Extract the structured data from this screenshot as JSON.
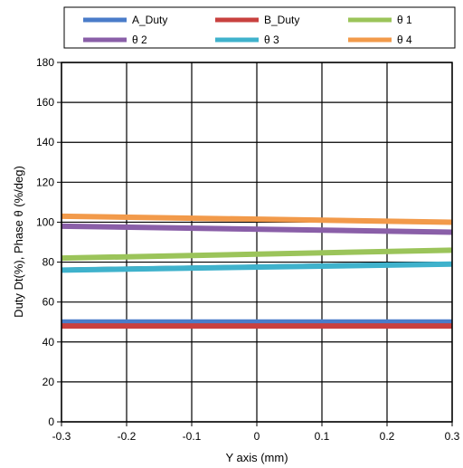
{
  "chart_data": {
    "type": "line",
    "xlabel": "Y axis (mm)",
    "ylabel": "Duty Dt(%), Phase θ (%/deg)",
    "xlim": [
      -0.3,
      0.3
    ],
    "ylim": [
      0,
      180
    ],
    "x_ticks": [
      "-0.3",
      "-0.2",
      "-0.1",
      "0",
      "0.1",
      "0.2",
      "0.3"
    ],
    "y_ticks": [
      "0",
      "20",
      "40",
      "60",
      "80",
      "100",
      "120",
      "140",
      "160",
      "180"
    ],
    "grid": true,
    "legend_position": "top",
    "x": [
      -0.3,
      0.3
    ],
    "series": [
      {
        "name": "A_Duty",
        "color": "#4a7cc9",
        "values": [
          50,
          50
        ]
      },
      {
        "name": "B_Duty",
        "color": "#c8413f",
        "values": [
          48,
          48
        ]
      },
      {
        "name": "θ 1",
        "color": "#9bc45a",
        "values": [
          82,
          86
        ]
      },
      {
        "name": "θ 2",
        "color": "#8a5fa8",
        "values": [
          98,
          95
        ]
      },
      {
        "name": "θ 3",
        "color": "#3fb2cc",
        "values": [
          76,
          79
        ]
      },
      {
        "name": "θ 4",
        "color": "#f29a4a",
        "values": [
          103,
          100
        ]
      }
    ],
    "black_line": {
      "values": [
        77,
        80
      ]
    }
  }
}
